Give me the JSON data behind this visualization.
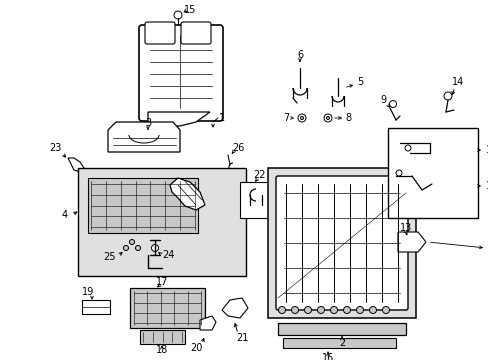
{
  "background_color": "#ffffff",
  "line_color": "#000000",
  "figsize": [
    4.89,
    3.6
  ],
  "dpi": 100,
  "gray_fill": "#c8c8c8",
  "light_gray": "#e0e0e0"
}
